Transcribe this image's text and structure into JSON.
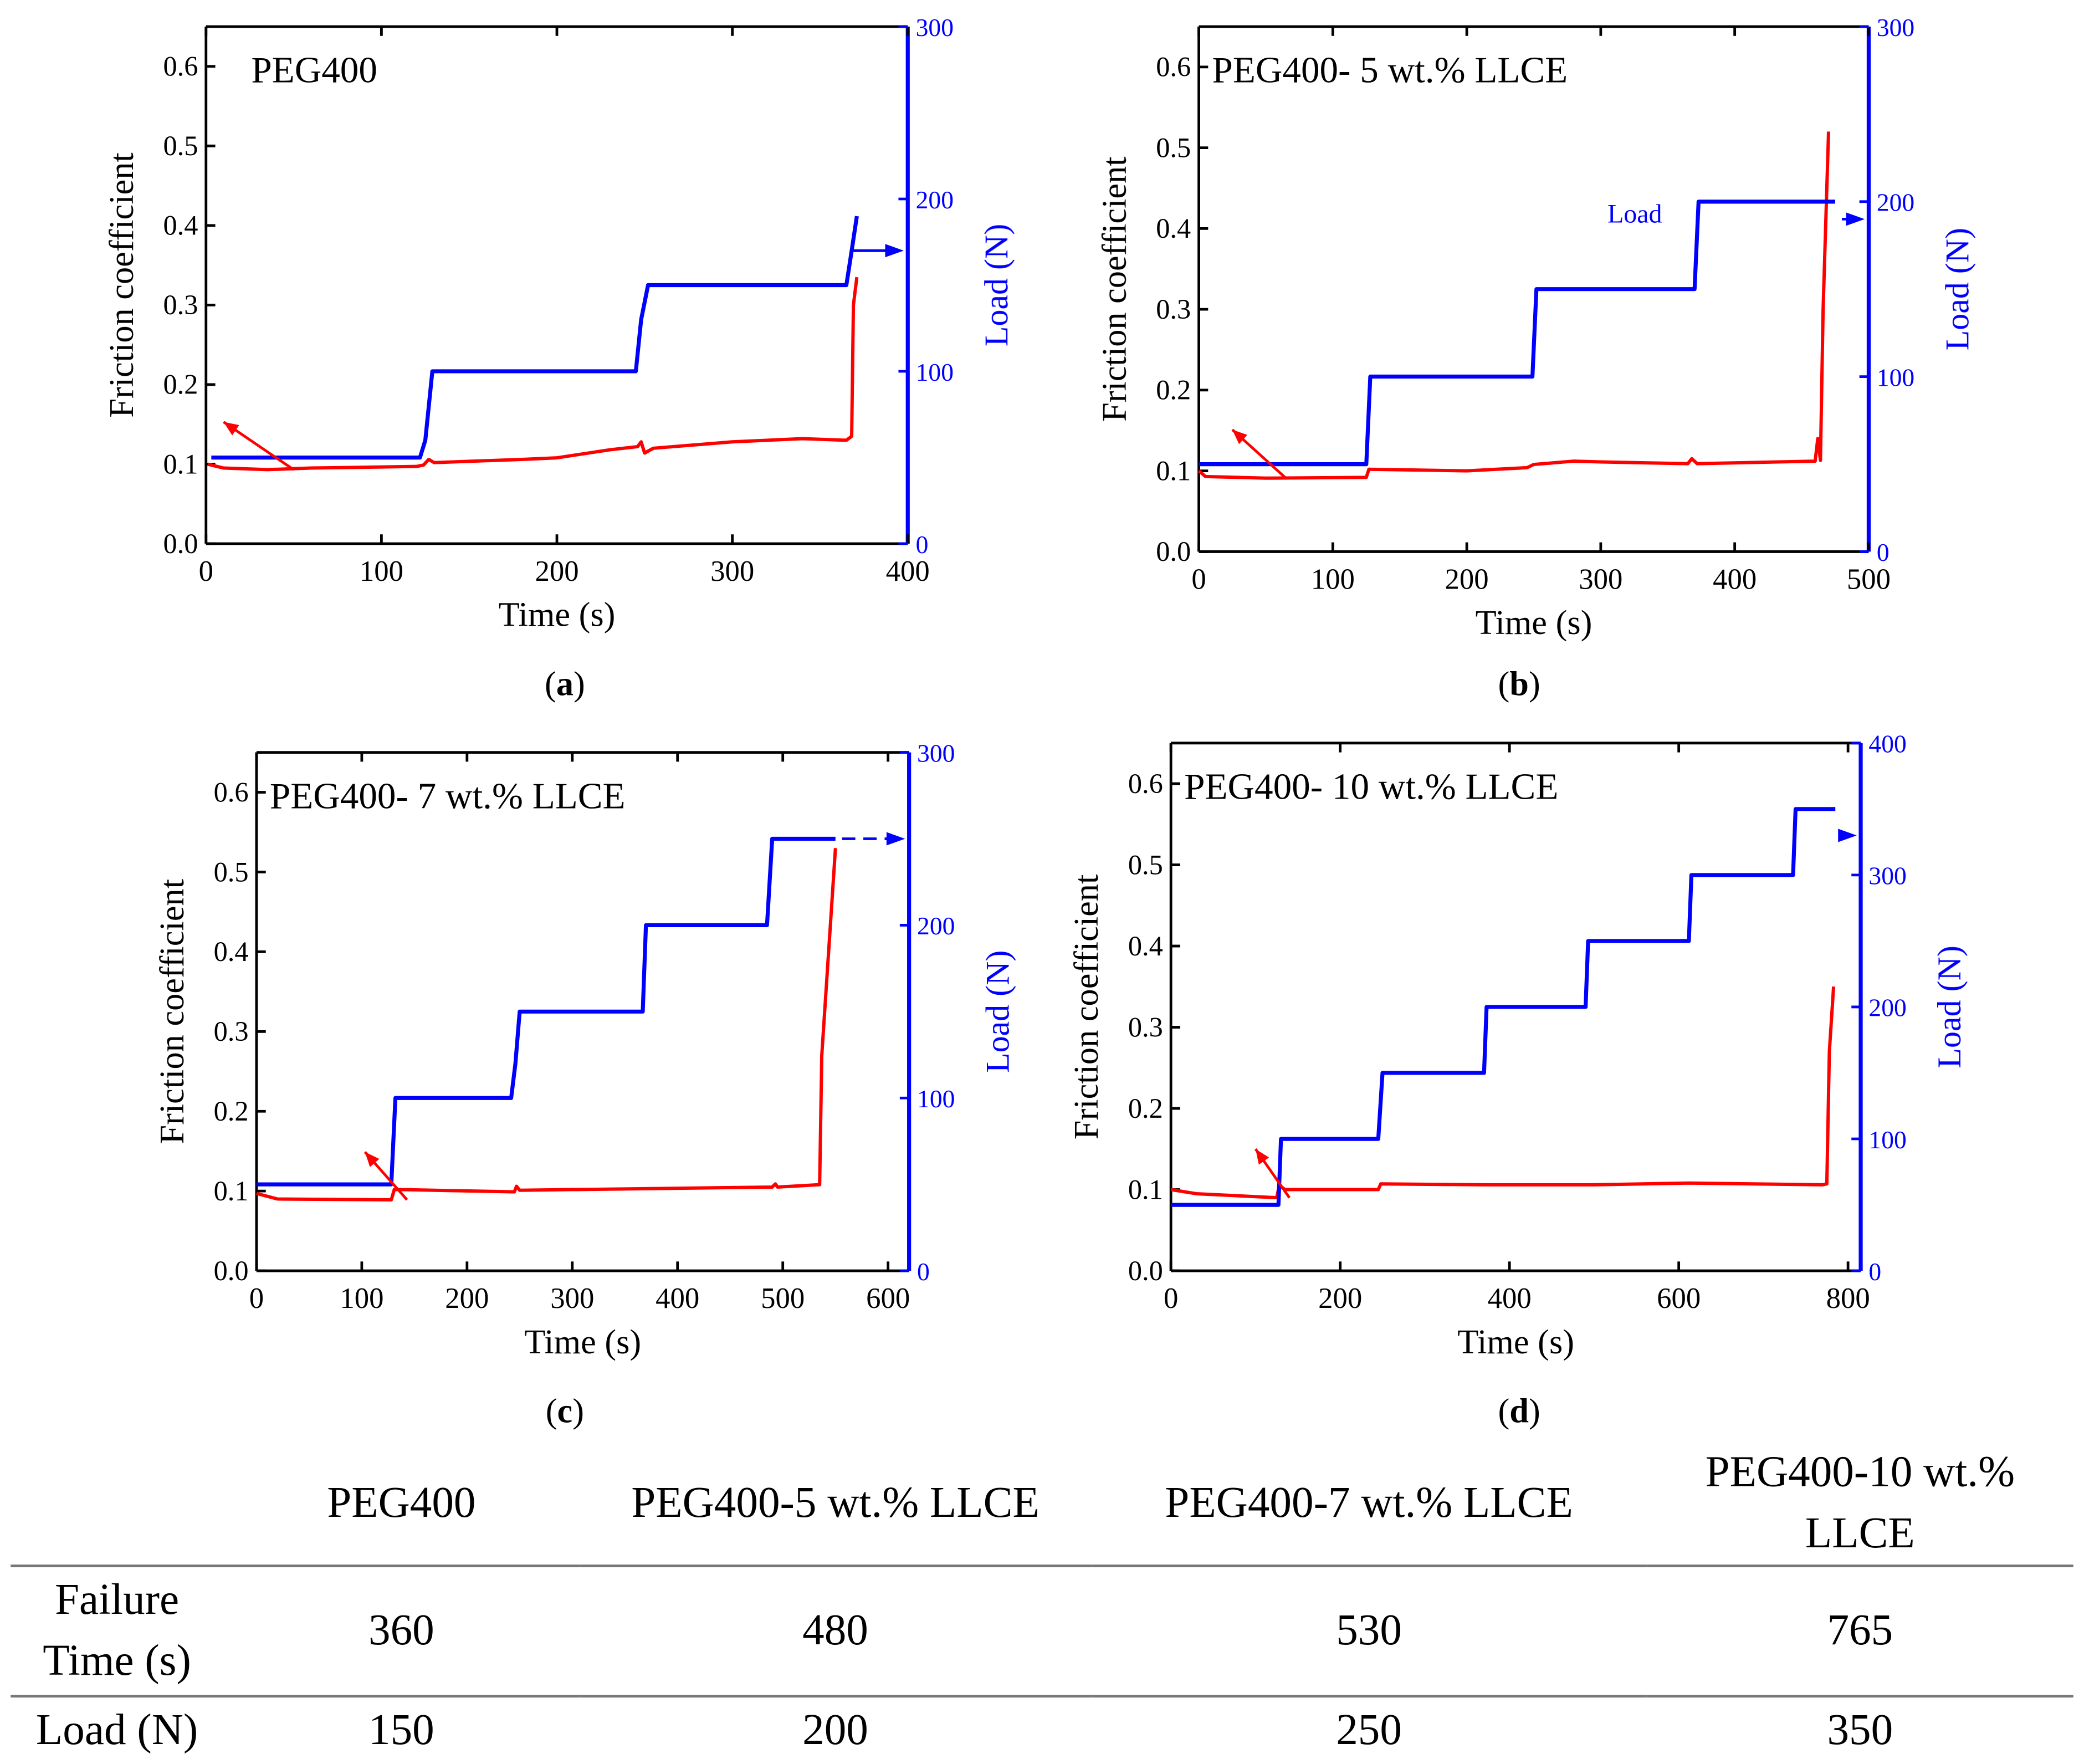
{
  "colors": {
    "friction": "#ff0000",
    "load": "#0000ff",
    "axis": "#000000"
  },
  "chart_data": [
    {
      "type": "line",
      "panel": "(a)",
      "title": "PEG400",
      "xlabel": "Time (s)",
      "ylabel": "Friction coefficient",
      "y2label": "Load (N)",
      "xlim": [
        0,
        400
      ],
      "ylim": [
        0,
        0.65
      ],
      "y2lim": [
        0,
        300
      ],
      "xticks": [
        "0",
        "100",
        "200",
        "300",
        "400"
      ],
      "yticks": [
        "0.0",
        "0.1",
        "0.2",
        "0.3",
        "0.4",
        "0.5",
        "0.6"
      ],
      "y2ticks": [
        "0",
        "100",
        "200",
        "300"
      ],
      "series": [
        {
          "name": "Friction coefficient",
          "axis": "left",
          "points": [
            [
              1,
              0.1
            ],
            [
              10,
              0.095
            ],
            [
              35,
              0.093
            ],
            [
              60,
              0.095
            ],
            [
              120,
              0.097
            ],
            [
              124,
              0.099
            ],
            [
              127,
              0.106
            ],
            [
              130,
              0.102
            ],
            [
              180,
              0.106
            ],
            [
              200,
              0.108
            ],
            [
              230,
              0.118
            ],
            [
              246,
              0.122
            ],
            [
              248,
              0.128
            ],
            [
              250,
              0.114
            ],
            [
              255,
              0.12
            ],
            [
              300,
              0.128
            ],
            [
              340,
              0.132
            ],
            [
              365,
              0.13
            ],
            [
              368,
              0.135
            ],
            [
              369,
              0.3
            ],
            [
              371,
              0.335
            ]
          ]
        },
        {
          "name": "Load",
          "axis": "right",
          "points": [
            [
              3,
              50
            ],
            [
              122,
              50
            ],
            [
              125,
              60
            ],
            [
              129,
              100
            ],
            [
              245,
              100
            ],
            [
              248,
              130
            ],
            [
              252,
              150
            ],
            [
              365,
              150
            ],
            [
              368,
              170
            ],
            [
              371,
              190
            ]
          ]
        }
      ]
    },
    {
      "type": "line",
      "panel": "(b)",
      "title": "PEG400- 5 wt.% LLCE",
      "xlabel": "Time (s)",
      "ylabel": "Friction coefficient",
      "y2label": "Load (N)",
      "annotation": "Load",
      "xlim": [
        0,
        500
      ],
      "ylim": [
        0,
        0.65
      ],
      "y2lim": [
        0,
        300
      ],
      "xticks": [
        "0",
        "100",
        "200",
        "300",
        "400",
        "500"
      ],
      "yticks": [
        "0.0",
        "0.1",
        "0.2",
        "0.3",
        "0.4",
        "0.5",
        "0.6"
      ],
      "y2ticks": [
        "0",
        "100",
        "200",
        "300"
      ],
      "series": [
        {
          "name": "Friction coefficient",
          "axis": "left",
          "points": [
            [
              0,
              0.1
            ],
            [
              5,
              0.093
            ],
            [
              50,
              0.091
            ],
            [
              125,
              0.092
            ],
            [
              127,
              0.102
            ],
            [
              200,
              0.1
            ],
            [
              245,
              0.104
            ],
            [
              250,
              0.108
            ],
            [
              280,
              0.112
            ],
            [
              300,
              0.111
            ],
            [
              365,
              0.109
            ],
            [
              368,
              0.115
            ],
            [
              372,
              0.109
            ],
            [
              460,
              0.112
            ],
            [
              462,
              0.14
            ],
            [
              464,
              0.113
            ],
            [
              466,
              0.3
            ],
            [
              470,
              0.52
            ]
          ]
        },
        {
          "name": "Load",
          "axis": "right",
          "points": [
            [
              0,
              50
            ],
            [
              125,
              50
            ],
            [
              128,
              100
            ],
            [
              249,
              100
            ],
            [
              252,
              150
            ],
            [
              370,
              150
            ],
            [
              373,
              200
            ],
            [
              475,
              200
            ]
          ]
        }
      ]
    },
    {
      "type": "line",
      "panel": "(c)",
      "title": "PEG400- 7 wt.% LLCE",
      "xlabel": "Time (s)",
      "ylabel": "Friction coefficient",
      "y2label": "Load (N)",
      "xlim": [
        0,
        620
      ],
      "ylim": [
        0,
        0.65
      ],
      "y2lim": [
        0,
        300
      ],
      "xticks": [
        "0",
        "100",
        "200",
        "300",
        "400",
        "500",
        "600"
      ],
      "yticks": [
        "0.0",
        "0.1",
        "0.2",
        "0.3",
        "0.4",
        "0.5",
        "0.6"
      ],
      "y2ticks": [
        "0",
        "100",
        "200",
        "300"
      ],
      "series": [
        {
          "name": "Friction coefficient",
          "axis": "left",
          "points": [
            [
              0,
              0.097
            ],
            [
              20,
              0.09
            ],
            [
              128,
              0.089
            ],
            [
              131,
              0.102
            ],
            [
              245,
              0.099
            ],
            [
              247,
              0.106
            ],
            [
              250,
              0.101
            ],
            [
              370,
              0.103
            ],
            [
              490,
              0.105
            ],
            [
              493,
              0.109
            ],
            [
              495,
              0.105
            ],
            [
              535,
              0.108
            ],
            [
              537,
              0.27
            ],
            [
              550,
              0.53
            ]
          ]
        },
        {
          "name": "Load",
          "axis": "right",
          "points": [
            [
              0,
              50
            ],
            [
              128,
              50
            ],
            [
              132,
              100
            ],
            [
              242,
              100
            ],
            [
              246,
              120
            ],
            [
              250,
              150
            ],
            [
              367,
              150
            ],
            [
              370,
              200
            ],
            [
              485,
              200
            ],
            [
              490,
              250
            ],
            [
              550,
              250
            ]
          ]
        }
      ]
    },
    {
      "type": "line",
      "panel": "(d)",
      "title": "PEG400- 10 wt.% LLCE",
      "xlabel": "Time (s)",
      "ylabel": "Friction coefficient",
      "y2label": "Load (N)",
      "xlim": [
        0,
        815
      ],
      "ylim": [
        0,
        0.65
      ],
      "y2lim": [
        0,
        400
      ],
      "xticks": [
        "0",
        "200",
        "400",
        "600",
        "800"
      ],
      "yticks": [
        "0.0",
        "0.1",
        "0.2",
        "0.3",
        "0.4",
        "0.5",
        "0.6"
      ],
      "y2ticks": [
        "0",
        "100",
        "200",
        "300",
        "400"
      ],
      "series": [
        {
          "name": "Friction coefficient",
          "axis": "left",
          "points": [
            [
              0,
              0.1
            ],
            [
              30,
              0.095
            ],
            [
              125,
              0.09
            ],
            [
              128,
              0.105
            ],
            [
              135,
              0.1
            ],
            [
              245,
              0.1
            ],
            [
              248,
              0.107
            ],
            [
              370,
              0.106
            ],
            [
              500,
              0.106
            ],
            [
              612,
              0.108
            ],
            [
              770,
              0.106
            ],
            [
              775,
              0.107
            ],
            [
              778,
              0.27
            ],
            [
              783,
              0.35
            ]
          ]
        },
        {
          "name": "Load",
          "axis": "right",
          "points": [
            [
              0,
              50
            ],
            [
              127,
              50
            ],
            [
              130,
              100
            ],
            [
              245,
              100
            ],
            [
              250,
              150
            ],
            [
              370,
              150
            ],
            [
              373,
              200
            ],
            [
              490,
              200
            ],
            [
              493,
              250
            ],
            [
              612,
              250
            ],
            [
              615,
              300
            ],
            [
              735,
              300
            ],
            [
              738,
              350
            ],
            [
              785,
              350
            ]
          ]
        }
      ]
    }
  ],
  "table": {
    "headers": [
      "",
      "PEG400",
      "PEG400-5 wt.% LLCE",
      "PEG400-7 wt.% LLCE",
      "PEG400-10 wt.% LLCE"
    ],
    "rows": [
      [
        "Failure Time (s)",
        "360",
        "480",
        "530",
        "765"
      ],
      [
        "Load (N)",
        "150",
        "200",
        "250",
        "350"
      ]
    ]
  }
}
